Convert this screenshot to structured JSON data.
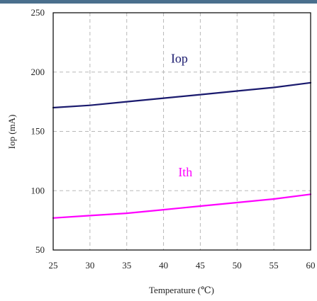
{
  "chart_data": {
    "type": "line",
    "title": "",
    "xlabel": "Temperature (℃)",
    "ylabel": "Iop (mA)",
    "xlim": [
      25,
      60
    ],
    "ylim": [
      50,
      250
    ],
    "x_ticks": [
      25,
      30,
      35,
      40,
      45,
      50,
      55,
      60
    ],
    "y_ticks": [
      50,
      100,
      150,
      200,
      250
    ],
    "grid": true,
    "series": [
      {
        "name": "Iop",
        "color": "#1a1a6e",
        "x": [
          25,
          30,
          35,
          40,
          45,
          50,
          55,
          60
        ],
        "y": [
          170,
          172,
          175,
          178,
          181,
          184,
          187,
          191
        ]
      },
      {
        "name": "Ith",
        "color": "#ff00ff",
        "x": [
          25,
          30,
          35,
          40,
          45,
          50,
          55,
          60
        ],
        "y": [
          77,
          79,
          81,
          84,
          87,
          90,
          93,
          97
        ]
      }
    ]
  }
}
